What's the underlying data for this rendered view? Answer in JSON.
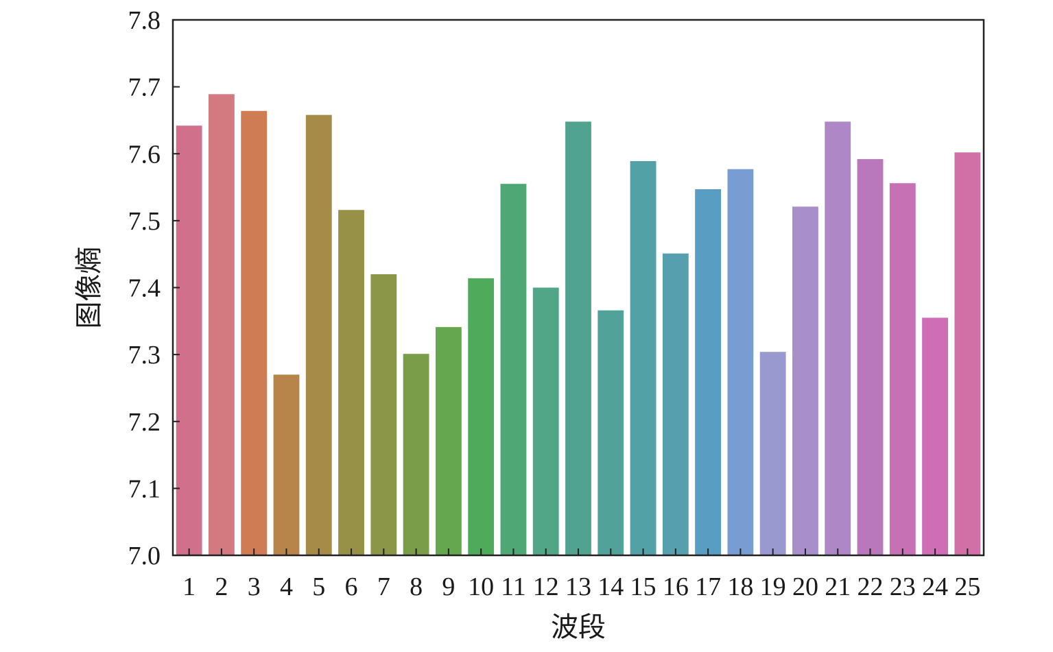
{
  "chart_data": {
    "type": "bar",
    "xlabel": "波段",
    "ylabel": "图像熵",
    "ylim": [
      7.0,
      7.8
    ],
    "yticks": [
      "7.0",
      "7.1",
      "7.2",
      "7.3",
      "7.4",
      "7.5",
      "7.6",
      "7.7",
      "7.8"
    ],
    "categories": [
      "1",
      "2",
      "3",
      "4",
      "5",
      "6",
      "7",
      "8",
      "9",
      "10",
      "11",
      "12",
      "13",
      "14",
      "15",
      "16",
      "17",
      "18",
      "19",
      "20",
      "21",
      "22",
      "23",
      "24",
      "25"
    ],
    "values": [
      7.642,
      7.689,
      7.664,
      7.27,
      7.658,
      7.516,
      7.42,
      7.301,
      7.341,
      7.414,
      7.555,
      7.4,
      7.648,
      7.366,
      7.589,
      7.451,
      7.547,
      7.577,
      7.304,
      7.521,
      7.648,
      7.592,
      7.556,
      7.355,
      7.602
    ],
    "colors": [
      "#d1708a",
      "#d37a80",
      "#cf7b53",
      "#b7854a",
      "#a58a48",
      "#969147",
      "#8b9648",
      "#7a9d4a",
      "#64a74e",
      "#4faa5c",
      "#4ea775",
      "#50a687",
      "#50a48f",
      "#51a399",
      "#52a1a7",
      "#569faf",
      "#5a9dc2",
      "#789dd2",
      "#9a99cf",
      "#a88fcc",
      "#ae88c6",
      "#b878bb",
      "#c671b4",
      "#cf6db5",
      "#d170a7"
    ],
    "grid": false,
    "legend": "none"
  }
}
